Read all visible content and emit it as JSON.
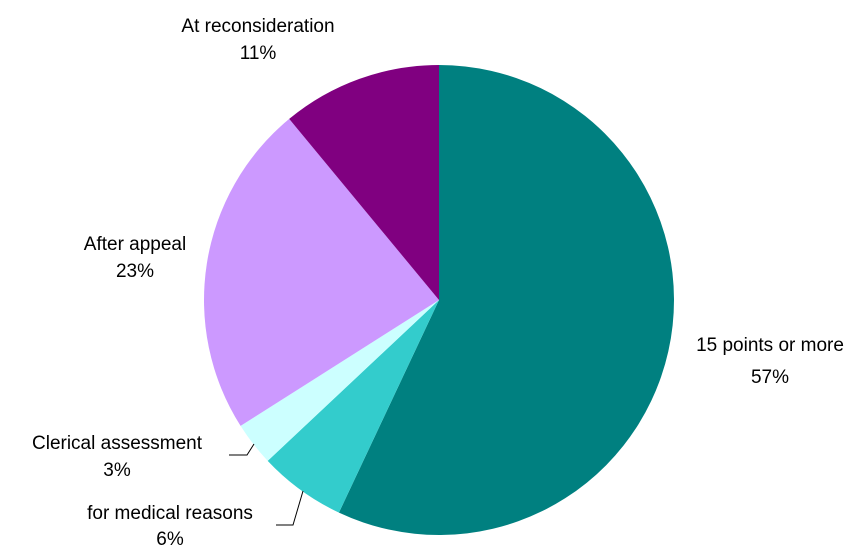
{
  "chart_data": {
    "type": "pie",
    "title": "",
    "start_angle_deg": 0,
    "direction": "clockwise",
    "slices": [
      {
        "label": "15 points or more",
        "value": 57,
        "value_label": "57%",
        "color": "#008080"
      },
      {
        "label": "for medical reasons",
        "value": 6,
        "value_label": "6%",
        "color": "#33CCCC"
      },
      {
        "label": "Clerical assessment",
        "value": 3,
        "value_label": "3%",
        "color": "#CCFFFF"
      },
      {
        "label": "After appeal",
        "value": 23,
        "value_label": "23%",
        "color": "#CC99FF"
      },
      {
        "label": "At reconsideration",
        "value": 11,
        "value_label": "11%",
        "color": "#800080"
      }
    ],
    "legend": "none",
    "data_labels": "category name and percentage, outside"
  }
}
